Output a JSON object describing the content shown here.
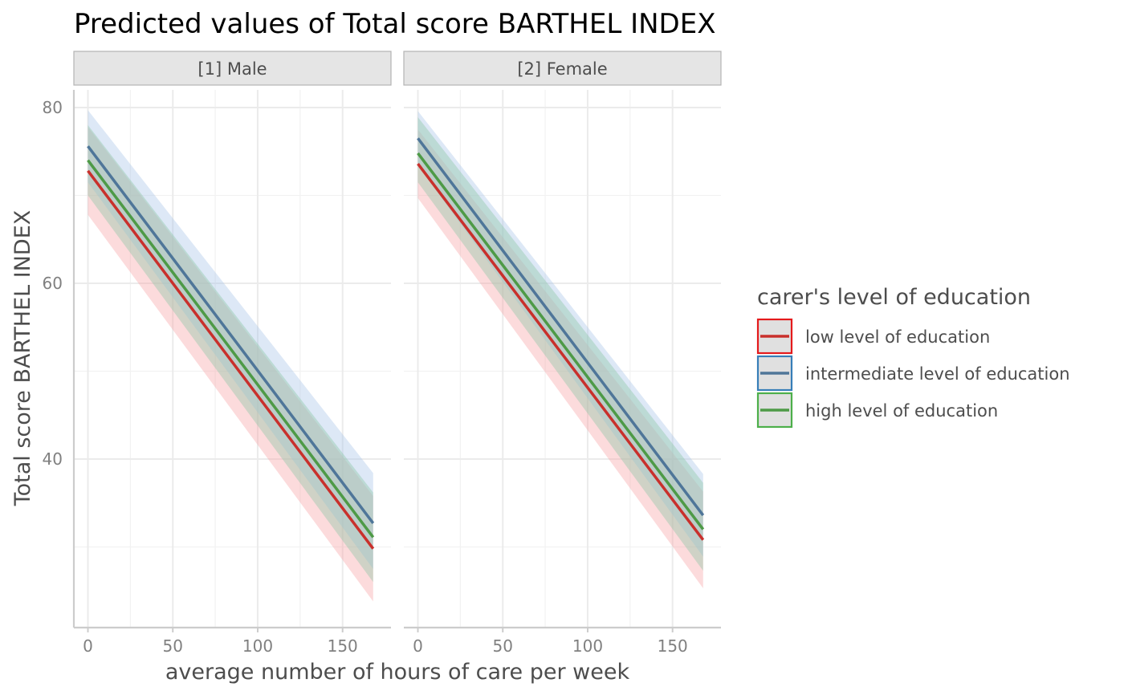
{
  "chart_data": {
    "type": "line",
    "title": "Predicted values of Total score BARTHEL INDEX",
    "xlabel": "average number of hours of care per week",
    "ylabel": "Total score BARTHEL INDEX",
    "xlim": [
      0,
      168
    ],
    "ylim": [
      20,
      82
    ],
    "x_ticks": [
      0,
      50,
      100,
      150
    ],
    "y_ticks": [
      40,
      60,
      80
    ],
    "grid": true,
    "legend": {
      "title": "carer's level of education",
      "position": "right"
    },
    "panels": [
      {
        "label": "[1] Male",
        "series": [
          {
            "name": "low level of education",
            "color": "#c9302c",
            "x": [
              0,
              168
            ],
            "y": [
              72.8,
              29.8
            ],
            "ci_lower": [
              67.8,
              23.8
            ],
            "ci_upper": [
              77.8,
              35.8
            ]
          },
          {
            "name": "intermediate level of education",
            "color": "#4f7699",
            "x": [
              0,
              168
            ],
            "y": [
              75.6,
              32.7
            ],
            "ci_lower": [
              71.5,
              27.5
            ],
            "ci_upper": [
              79.7,
              38.4
            ]
          },
          {
            "name": "high level of education",
            "color": "#4e9a47",
            "x": [
              0,
              168
            ],
            "y": [
              74.0,
              31.1
            ],
            "ci_lower": [
              70.0,
              26.0
            ],
            "ci_upper": [
              78.0,
              36.2
            ]
          }
        ]
      },
      {
        "label": "[2] Female",
        "series": [
          {
            "name": "low level of education",
            "color": "#c9302c",
            "x": [
              0,
              168
            ],
            "y": [
              73.6,
              30.8
            ],
            "ci_lower": [
              69.7,
              25.3
            ],
            "ci_upper": [
              77.5,
              36.3
            ]
          },
          {
            "name": "intermediate level of education",
            "color": "#4f7699",
            "x": [
              0,
              168
            ],
            "y": [
              76.5,
              33.6
            ],
            "ci_lower": [
              73.4,
              28.9
            ],
            "ci_upper": [
              79.6,
              38.3
            ]
          },
          {
            "name": "high level of education",
            "color": "#4e9a47",
            "x": [
              0,
              168
            ],
            "y": [
              74.8,
              32.0
            ],
            "ci_lower": [
              71.5,
              27.3
            ],
            "ci_upper": [
              78.9,
              37.3
            ]
          }
        ]
      }
    ]
  },
  "legend_items": [
    {
      "label": "low level of education",
      "color": "#c9302c",
      "border": "#e41a1c",
      "fill": "#f4c6c6"
    },
    {
      "label": "intermediate level of education",
      "color": "#4f7699",
      "border": "#377eb8",
      "fill": "#cddcea"
    },
    {
      "label": "high level of education",
      "color": "#4e9a47",
      "border": "#4daf4a",
      "fill": "#cfe6cc"
    }
  ],
  "colors": {
    "ribbon_low": "#f8a5a8",
    "ribbon_intermediate": "#a9c6e8",
    "ribbon_high": "#8cc6a6",
    "strip_fill": "#e5e5e5",
    "strip_border": "#b3b3b3",
    "grid_major": "#ebebeb",
    "grid_minor": "#f2f2f2",
    "axis_line": "#cccccc"
  }
}
